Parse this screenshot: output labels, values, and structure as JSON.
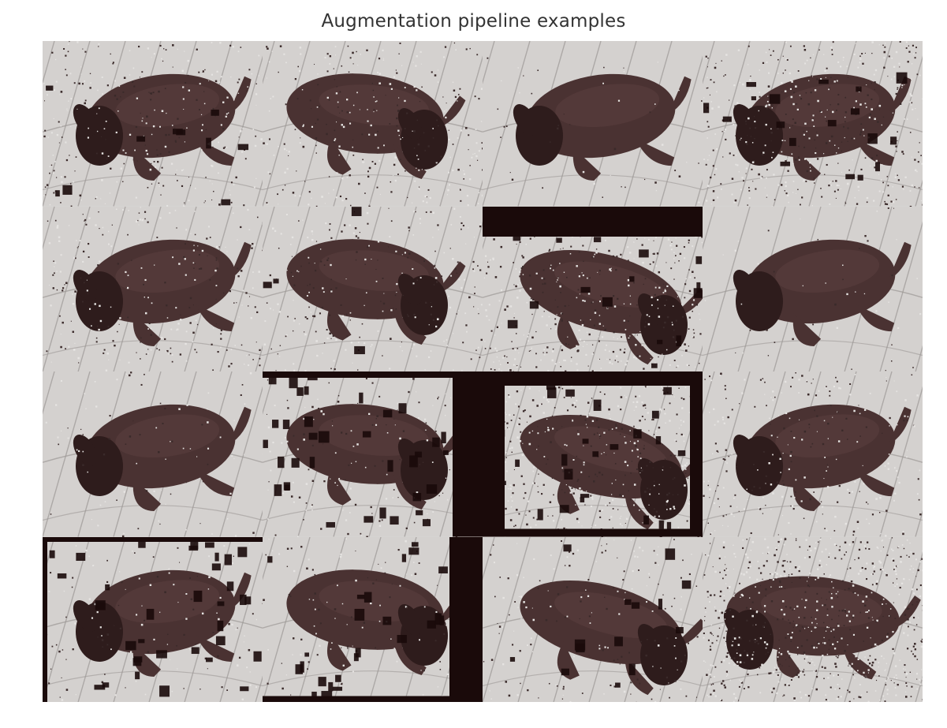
{
  "title": "Augmentation pipeline examples",
  "colors": {
    "dog": "#4a3232",
    "dog_dark": "#2e1c1c",
    "floor": "#d4d1cf",
    "floor_light": "#e6e4e2",
    "grout": "#9c9896",
    "block": "#1a0a0a",
    "noise_dark": "#3a2a2a"
  },
  "tiles": [
    {
      "mirror": false,
      "pose": "a",
      "noise": 0.35,
      "blocks": 10,
      "frame": "none"
    },
    {
      "mirror": false,
      "pose": "b",
      "noise": 0.35,
      "blocks": 0,
      "frame": "none"
    },
    {
      "mirror": false,
      "pose": "a",
      "noise": 0.05,
      "blocks": 0,
      "frame": "none"
    },
    {
      "mirror": false,
      "pose": "a",
      "noise": 0.55,
      "blocks": 18,
      "frame": "none"
    },
    {
      "mirror": false,
      "pose": "a",
      "noise": 0.3,
      "blocks": 0,
      "frame": "none"
    },
    {
      "mirror": false,
      "pose": "b",
      "noise": 0.3,
      "blocks": 4,
      "frame": "none"
    },
    {
      "mirror": false,
      "pose": "c",
      "noise": 0.55,
      "blocks": 16,
      "frame": "top"
    },
    {
      "mirror": false,
      "pose": "a",
      "noise": 0.05,
      "blocks": 0,
      "frame": "none"
    },
    {
      "mirror": false,
      "pose": "a",
      "noise": 0.1,
      "blocks": 0,
      "frame": "none"
    },
    {
      "mirror": false,
      "pose": "b",
      "noise": 0.2,
      "blocks": 40,
      "frame": "right"
    },
    {
      "mirror": false,
      "pose": "c",
      "noise": 0.6,
      "blocks": 30,
      "frame": "box"
    },
    {
      "mirror": false,
      "pose": "a",
      "noise": 0.3,
      "blocks": 0,
      "frame": "none"
    },
    {
      "mirror": false,
      "pose": "a",
      "noise": 0.15,
      "blocks": 34,
      "frame": "left"
    },
    {
      "mirror": false,
      "pose": "b",
      "noise": 0.15,
      "blocks": 28,
      "frame": "bottom"
    },
    {
      "mirror": false,
      "pose": "c",
      "noise": 0.2,
      "blocks": 14,
      "frame": "none"
    },
    {
      "mirror": false,
      "pose": "d",
      "noise": 0.85,
      "blocks": 0,
      "frame": "none"
    }
  ]
}
